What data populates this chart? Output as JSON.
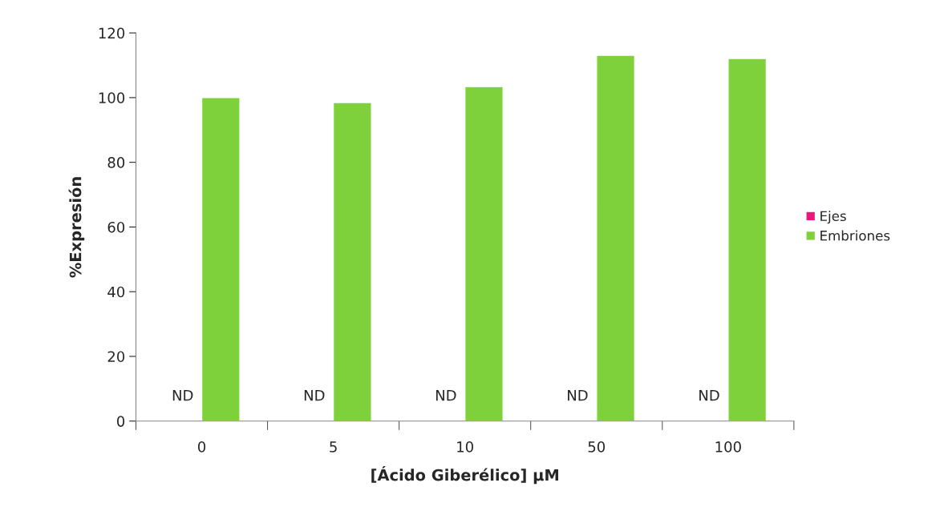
{
  "chart_data": {
    "type": "bar",
    "xlabel": "[Ácido Giberélico] µM",
    "ylabel": "%Expresión",
    "categories": [
      "0",
      "5",
      "10",
      "50",
      "100"
    ],
    "series": [
      {
        "name": "Ejes",
        "color": "#e6197a",
        "values": [
          null,
          null,
          null,
          null,
          null
        ],
        "value_labels": [
          "ND",
          "ND",
          "ND",
          "ND",
          "ND"
        ]
      },
      {
        "name": "Embriones",
        "color": "#7fd13b",
        "values": [
          100,
          98.5,
          103.4,
          113.1,
          112.1
        ]
      }
    ],
    "ylim": [
      0,
      120
    ],
    "yticks": [
      0,
      20,
      40,
      60,
      80,
      100,
      120
    ],
    "grid": false,
    "legend": "right"
  }
}
